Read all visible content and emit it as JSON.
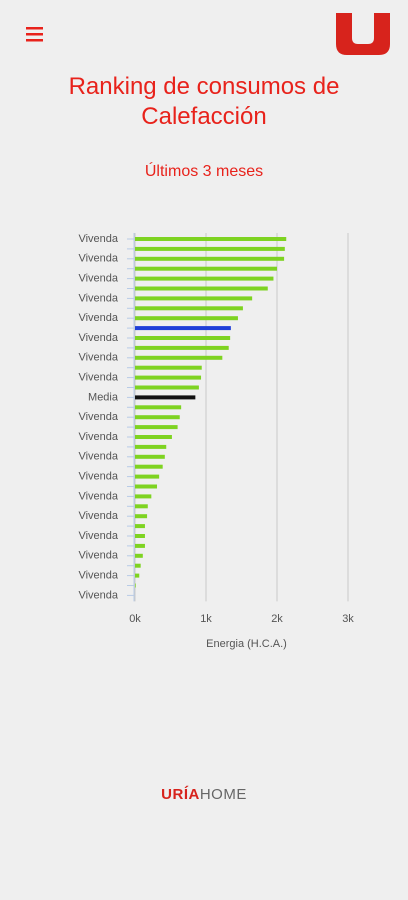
{
  "header": {
    "title": "Ranking de consumos de Calefacción",
    "subtitle": "Últimos 3 meses"
  },
  "chart_data": {
    "type": "hbar",
    "categories": [
      "Vivenda",
      null,
      "Vivenda",
      null,
      "Vivenda",
      null,
      "Vivenda",
      null,
      "Vivenda",
      null,
      "Vivenda",
      null,
      "Vivenda",
      null,
      "Vivenda",
      null,
      "Media",
      null,
      "Vivenda",
      null,
      "Vivenda",
      null,
      "Vivenda",
      null,
      "Vivenda",
      null,
      "Vivenda",
      null,
      "Vivenda",
      null,
      "Vivenda",
      null,
      "Vivenda",
      null,
      "Vivenda",
      null,
      "Vivenda"
    ],
    "values": [
      2130,
      2110,
      2100,
      2000,
      1950,
      1870,
      1650,
      1520,
      1450,
      1350,
      1340,
      1320,
      1230,
      940,
      930,
      900,
      850,
      650,
      630,
      600,
      520,
      440,
      420,
      390,
      340,
      310,
      230,
      180,
      170,
      140,
      140,
      140,
      110,
      80,
      60,
      10,
      0
    ],
    "colors": [
      "#7ed321",
      "#7ed321",
      "#7ed321",
      "#7ed321",
      "#7ed321",
      "#7ed321",
      "#7ed321",
      "#7ed321",
      "#7ed321",
      "#1f3fd8",
      "#7ed321",
      "#7ed321",
      "#7ed321",
      "#7ed321",
      "#7ed321",
      "#7ed321",
      "#111111",
      "#7ed321",
      "#7ed321",
      "#7ed321",
      "#7ed321",
      "#7ed321",
      "#7ed321",
      "#7ed321",
      "#7ed321",
      "#7ed321",
      "#7ed321",
      "#7ed321",
      "#7ed321",
      "#7ed321",
      "#7ed321",
      "#7ed321",
      "#7ed321",
      "#7ed321",
      "#7ed321",
      "#7ed321",
      "#7ed321"
    ],
    "xlim": [
      0,
      3000
    ],
    "xticks": [
      {
        "value": 0,
        "label": "0k"
      },
      {
        "value": 1000,
        "label": "1k"
      },
      {
        "value": 2000,
        "label": "2k"
      },
      {
        "value": 3000,
        "label": "3k"
      }
    ],
    "xlabel": "Energia (H.C.A.)",
    "grid": true
  },
  "footer": {
    "brand": "URÍA",
    "brand_suffix": "HOME"
  }
}
